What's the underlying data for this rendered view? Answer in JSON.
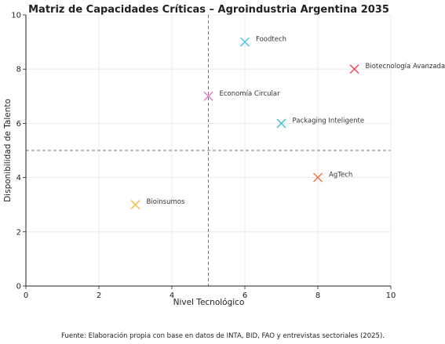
{
  "chart_data": {
    "type": "scatter",
    "title": "Matriz de Capacidades Críticas – Agroindustria Argentina 2035",
    "xlabel": "Nivel Tecnológico",
    "ylabel": "Disponibilidad de Talento",
    "xlim": [
      0,
      10
    ],
    "ylim": [
      0,
      10
    ],
    "xticks": [
      "0",
      "2",
      "4",
      "6",
      "8",
      "10"
    ],
    "yticks": [
      "0",
      "2",
      "4",
      "6",
      "8",
      "10"
    ],
    "grid": true,
    "quadrant_lines": {
      "x": 5,
      "y": 5,
      "style": "dashed"
    },
    "marker": "x",
    "points": [
      {
        "label": "Foodtech",
        "x": 6,
        "y": 9,
        "color": "#5bc8e6"
      },
      {
        "label": "Biotecnología Avanzada",
        "x": 9,
        "y": 8,
        "color": "#e5566e"
      },
      {
        "label": "Economía Circular",
        "x": 5,
        "y": 7,
        "color": "#d78ac8"
      },
      {
        "label": "Packaging Inteligente",
        "x": 7,
        "y": 6,
        "color": "#50c6cf"
      },
      {
        "label": "AgTech",
        "x": 8,
        "y": 4,
        "color": "#ee7d52"
      },
      {
        "label": "Bioinsumos",
        "x": 3,
        "y": 3,
        "color": "#f2c14e"
      }
    ],
    "footnote": "Fuente: Elaboración propia con base en datos de INTA, BID, FAO y entrevistas sectoriales (2025)."
  }
}
